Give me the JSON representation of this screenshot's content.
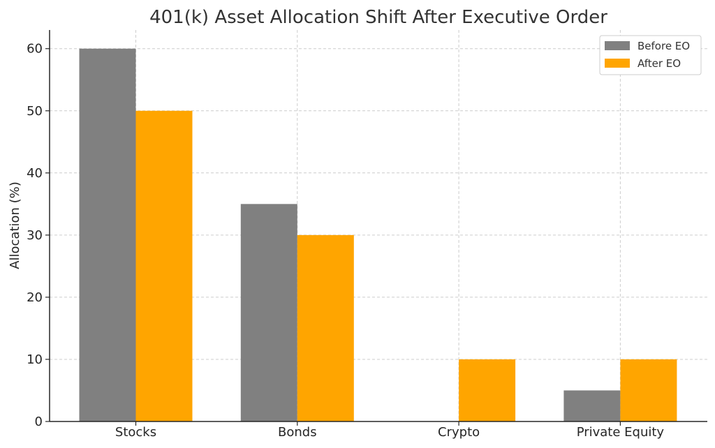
{
  "chart_data": {
    "type": "bar",
    "title": "401(k) Asset Allocation Shift After Executive Order",
    "xlabel": "",
    "ylabel": "Allocation (%)",
    "categories": [
      "Stocks",
      "Bonds",
      "Crypto",
      "Private Equity"
    ],
    "series": [
      {
        "name": "Before EO",
        "values": [
          60,
          35,
          0,
          5
        ],
        "color": "#808080"
      },
      {
        "name": "After EO",
        "values": [
          50,
          30,
          10,
          10
        ],
        "color": "#ffa500"
      }
    ],
    "ylim": [
      0,
      63
    ],
    "yticks": [
      0,
      10,
      20,
      30,
      40,
      50,
      60
    ],
    "grid": true,
    "legend_position": "top-right"
  }
}
